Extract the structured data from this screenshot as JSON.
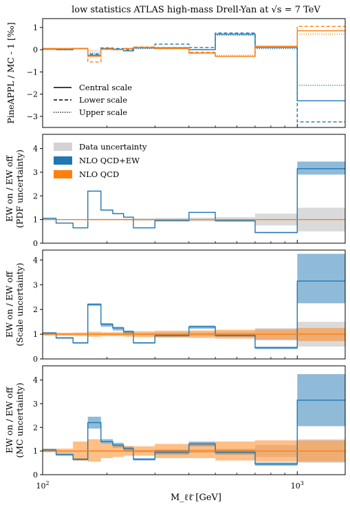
{
  "title": "low statistics ATLAS high-mass Drell-Yan at √s = 7 TeV",
  "xlabel": "M_ℓℓ̄ [GeV]",
  "colors": {
    "ew": "#1f77b4",
    "qcd": "#ff7f0e",
    "data": "#d3d3d3"
  },
  "chart_data": [
    {
      "type": "line",
      "ylabel": "PineAPPL / MC - 1 [‰]",
      "xscale": "log",
      "xlim": [
        116,
        1500
      ],
      "ylim": [
        -3.5,
        1.4
      ],
      "yticks": [
        -3,
        -2,
        -1,
        0,
        1
      ],
      "edges": [
        116,
        130,
        150,
        170,
        190,
        210,
        230,
        250,
        300,
        400,
        500,
        700,
        1000,
        1500
      ],
      "legend": {
        "position": "lower-left",
        "entries": [
          "Central scale",
          "Lower scale",
          "Upper scale"
        ]
      },
      "series": [
        {
          "name": "Central scale",
          "color": "ew",
          "style": "solid",
          "values": [
            0.03,
            0.0,
            0.05,
            -0.25,
            0.05,
            0.02,
            -0.05,
            0.08,
            0.08,
            0.0,
            0.7,
            0.1,
            -2.3
          ]
        },
        {
          "name": "Lower scale",
          "color": "ew",
          "style": "dashed",
          "values": [
            0.05,
            0.0,
            0.05,
            -0.2,
            0.08,
            0.05,
            0.0,
            0.12,
            0.25,
            0.1,
            0.75,
            0.15,
            -3.25
          ]
        },
        {
          "name": "Upper scale",
          "color": "ew",
          "style": "dotted",
          "values": [
            0.0,
            0.0,
            0.05,
            -0.15,
            0.05,
            0.02,
            -0.05,
            0.05,
            0.05,
            0.0,
            0.65,
            0.05,
            -1.6
          ]
        },
        {
          "name": "Central scale",
          "color": "qcd",
          "style": "solid",
          "values": [
            0.05,
            0.05,
            0.05,
            -0.3,
            0.02,
            0.0,
            0.05,
            0.1,
            0.05,
            -0.15,
            -0.3,
            0.15,
            0.85
          ]
        },
        {
          "name": "Lower scale",
          "color": "qcd",
          "style": "dashed",
          "values": [
            0.05,
            0.05,
            0.05,
            -0.55,
            0.02,
            0.0,
            0.05,
            0.12,
            0.1,
            -0.12,
            -0.3,
            0.15,
            1.05
          ]
        },
        {
          "name": "Upper scale",
          "color": "qcd",
          "style": "dotted",
          "values": [
            0.02,
            0.02,
            0.05,
            -0.05,
            0.05,
            0.0,
            0.05,
            0.12,
            0.1,
            -0.15,
            -0.25,
            0.12,
            0.7
          ]
        }
      ]
    },
    {
      "type": "line",
      "ylabel": "EW on / EW off",
      "ylabel2": "(PDF uncertainty)",
      "xscale": "log",
      "xlim": [
        116,
        1500
      ],
      "ylim": [
        0,
        4.6
      ],
      "yticks": [
        0,
        1,
        2,
        3,
        4
      ],
      "edges": [
        116,
        130,
        150,
        170,
        190,
        210,
        230,
        250,
        300,
        400,
        500,
        700,
        1000,
        1500
      ],
      "legend": {
        "position": "upper-left",
        "entries": [
          "Data uncertainty",
          "NLO QCD+EW",
          "NLO QCD"
        ]
      },
      "data_band": {
        "lo": [
          0.98,
          0.98,
          0.98,
          0.97,
          0.97,
          0.97,
          0.96,
          0.95,
          0.93,
          0.92,
          0.9,
          0.75,
          0.5
        ],
        "hi": [
          1.02,
          1.02,
          1.02,
          1.03,
          1.03,
          1.03,
          1.04,
          1.05,
          1.07,
          1.08,
          1.1,
          1.25,
          1.5
        ]
      },
      "series": [
        {
          "name": "NLO QCD+EW",
          "color": "ew",
          "values": [
            1.05,
            0.85,
            0.65,
            2.2,
            1.4,
            1.25,
            1.1,
            0.65,
            0.95,
            1.3,
            0.95,
            0.45,
            3.15
          ],
          "lo": [
            1.03,
            0.83,
            0.63,
            2.18,
            1.38,
            1.23,
            1.08,
            0.63,
            0.93,
            1.28,
            0.93,
            0.43,
            2.9
          ],
          "hi": [
            1.07,
            0.87,
            0.67,
            2.22,
            1.42,
            1.27,
            1.12,
            0.67,
            0.97,
            1.32,
            0.97,
            0.47,
            3.45
          ]
        },
        {
          "name": "NLO QCD",
          "color": "qcd",
          "values": [
            1.0,
            1.0,
            1.0,
            1.0,
            1.0,
            1.0,
            1.0,
            1.0,
            1.0,
            1.0,
            1.0,
            1.0,
            1.0
          ],
          "lo": [
            0.99,
            0.99,
            0.99,
            0.99,
            0.99,
            0.99,
            0.99,
            0.99,
            0.99,
            0.99,
            0.99,
            0.99,
            0.99
          ],
          "hi": [
            1.01,
            1.01,
            1.01,
            1.01,
            1.01,
            1.01,
            1.01,
            1.01,
            1.01,
            1.01,
            1.01,
            1.01,
            1.01
          ]
        }
      ]
    },
    {
      "type": "line",
      "ylabel": "EW on / EW off",
      "ylabel2": "(Scale uncertainty)",
      "xscale": "log",
      "xlim": [
        116,
        1500
      ],
      "ylim": [
        0,
        4.4
      ],
      "yticks": [
        0,
        1,
        2,
        3,
        4
      ],
      "edges": [
        116,
        130,
        150,
        170,
        190,
        210,
        230,
        250,
        300,
        400,
        500,
        700,
        1000,
        1500
      ],
      "data_band": {
        "lo": [
          0.98,
          0.98,
          0.98,
          0.97,
          0.97,
          0.97,
          0.96,
          0.95,
          0.93,
          0.92,
          0.9,
          0.75,
          0.5
        ],
        "hi": [
          1.02,
          1.02,
          1.02,
          1.03,
          1.03,
          1.03,
          1.04,
          1.05,
          1.07,
          1.08,
          1.1,
          1.25,
          1.5
        ]
      },
      "series": [
        {
          "name": "NLO QCD+EW",
          "color": "ew",
          "values": [
            1.05,
            0.85,
            0.65,
            2.2,
            1.4,
            1.25,
            1.1,
            0.65,
            0.95,
            1.3,
            0.95,
            0.45,
            3.15
          ],
          "lo": [
            1.0,
            0.82,
            0.62,
            2.15,
            1.3,
            1.15,
            1.0,
            0.62,
            0.9,
            1.22,
            0.9,
            0.4,
            2.25
          ],
          "hi": [
            1.08,
            0.88,
            0.68,
            2.25,
            1.45,
            1.3,
            1.15,
            0.68,
            1.0,
            1.35,
            1.0,
            0.5,
            4.25
          ]
        },
        {
          "name": "NLO QCD",
          "color": "qcd",
          "values": [
            1.0,
            1.0,
            1.0,
            1.0,
            1.0,
            1.0,
            1.0,
            1.0,
            1.0,
            1.0,
            1.0,
            1.0,
            1.0
          ],
          "lo": [
            0.95,
            0.94,
            0.93,
            0.9,
            0.92,
            0.92,
            0.9,
            0.88,
            0.86,
            0.85,
            0.82,
            0.78,
            0.72
          ],
          "hi": [
            1.05,
            1.06,
            1.07,
            1.1,
            1.08,
            1.08,
            1.1,
            1.12,
            1.14,
            1.15,
            1.18,
            1.2,
            1.25
          ]
        }
      ]
    },
    {
      "type": "line",
      "ylabel": "EW on / EW off",
      "ylabel2": "(MC uncertainty)",
      "xscale": "log",
      "xlim": [
        116,
        1500
      ],
      "ylim": [
        0,
        4.6
      ],
      "yticks": [
        0,
        1,
        2,
        3,
        4
      ],
      "edges": [
        116,
        130,
        150,
        170,
        190,
        210,
        230,
        250,
        300,
        400,
        500,
        700,
        1000,
        1500
      ],
      "data_band": {
        "lo": [
          0.98,
          0.98,
          0.98,
          0.97,
          0.97,
          0.97,
          0.96,
          0.95,
          0.93,
          0.92,
          0.9,
          0.75,
          0.5
        ],
        "hi": [
          1.02,
          1.02,
          1.02,
          1.03,
          1.03,
          1.03,
          1.04,
          1.05,
          1.07,
          1.08,
          1.1,
          1.25,
          1.5
        ]
      },
      "series": [
        {
          "name": "NLO QCD+EW",
          "color": "ew",
          "values": [
            1.05,
            0.85,
            0.65,
            2.2,
            1.4,
            1.25,
            1.1,
            0.65,
            0.95,
            1.3,
            0.95,
            0.45,
            3.15
          ],
          "lo": [
            1.0,
            0.8,
            0.6,
            1.95,
            1.3,
            1.15,
            1.0,
            0.6,
            0.85,
            1.2,
            0.85,
            0.38,
            2.05
          ],
          "hi": [
            1.1,
            0.9,
            0.7,
            2.45,
            1.5,
            1.35,
            1.2,
            0.7,
            1.05,
            1.4,
            1.05,
            0.52,
            4.25
          ]
        },
        {
          "name": "NLO QCD",
          "color": "qcd",
          "values": [
            1.0,
            1.0,
            1.0,
            1.0,
            1.0,
            1.0,
            1.0,
            1.0,
            1.0,
            1.0,
            1.0,
            1.0,
            1.0
          ],
          "lo": [
            0.95,
            0.9,
            0.6,
            0.55,
            0.7,
            0.75,
            0.8,
            0.8,
            0.7,
            0.7,
            0.6,
            0.55,
            0.55
          ],
          "hi": [
            1.05,
            1.1,
            1.4,
            1.5,
            1.3,
            1.25,
            1.2,
            1.2,
            1.3,
            1.3,
            1.4,
            1.45,
            1.45
          ]
        }
      ]
    }
  ]
}
